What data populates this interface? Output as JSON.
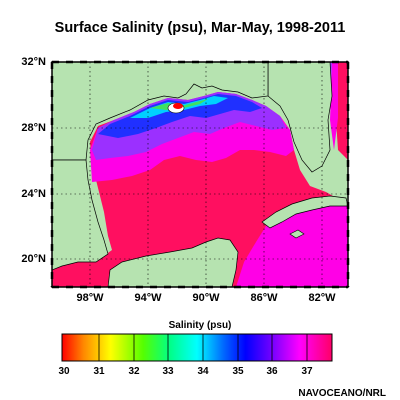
{
  "title": "Surface Salinity (psu), Mar-May, 1998-2011",
  "lat_labels": [
    "32°N",
    "28°N",
    "24°N",
    "20°N"
  ],
  "lon_labels": [
    "98°W",
    "94°W",
    "90°W",
    "86°W",
    "82°W"
  ],
  "colorbar": {
    "label": "Salinity (psu)",
    "ticks": [
      "30",
      "31",
      "32",
      "33",
      "34",
      "35",
      "36",
      "37"
    ],
    "range": [
      30,
      37.8
    ],
    "colors": [
      "#ff0000",
      "#ff8800",
      "#ffff00",
      "#55ff00",
      "#00ff88",
      "#00ffff",
      "#0066ff",
      "#0000ff",
      "#7700ff",
      "#ff00ff",
      "#ff0066"
    ]
  },
  "credit": "NAVOCEANO/NRL",
  "colors": {
    "land": "#b6e3b0",
    "ocean_high": "#ff0f60",
    "magenta": "#ff00e6",
    "purple": "#9b30ff",
    "blue": "#2030ff",
    "cyan": "#00d0ff",
    "green": "#40e060"
  }
}
